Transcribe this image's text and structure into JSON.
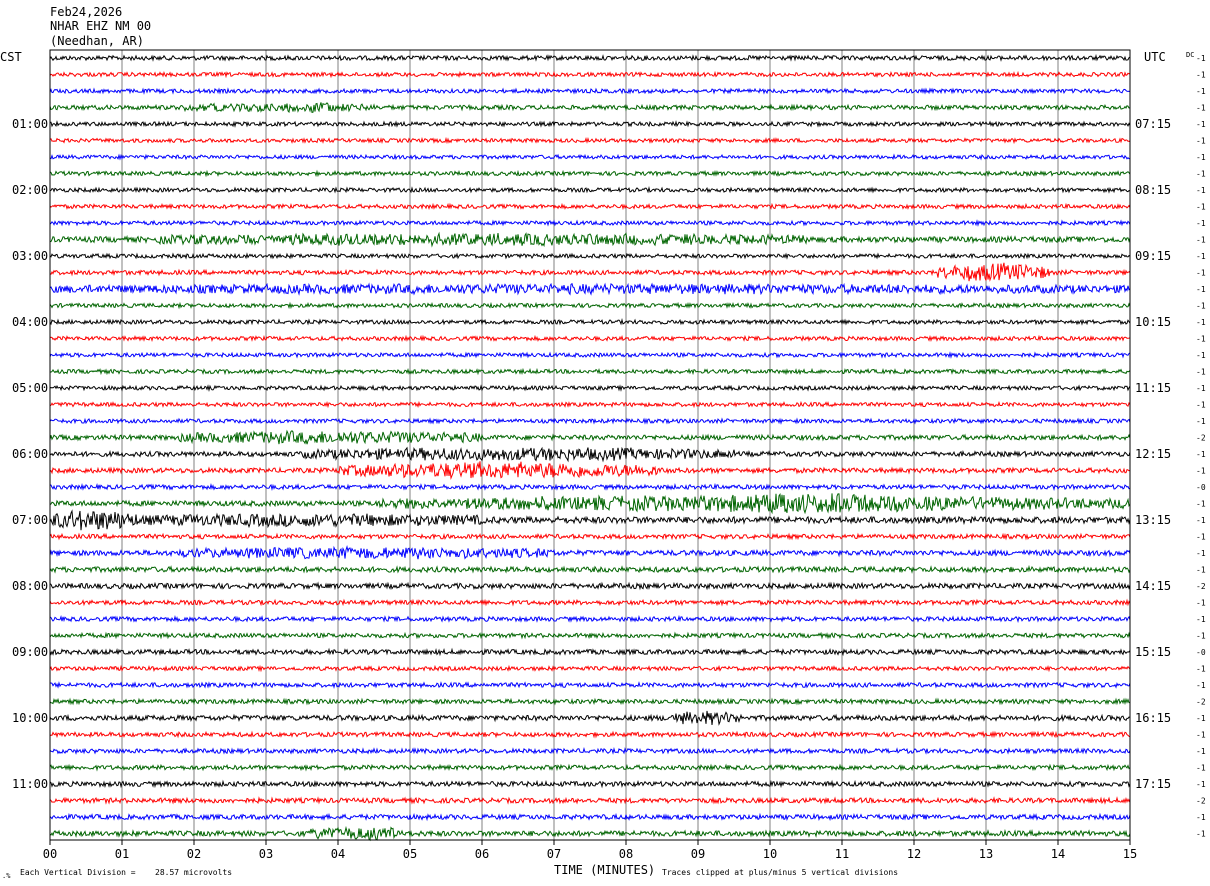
{
  "header": {
    "date": "Feb24,2026",
    "station": "NHAR EHZ NM 00",
    "location": "(Needhan, AR)"
  },
  "left_timezone": "CST",
  "right_timezone": "UTC",
  "dc_label": "DC",
  "footer": {
    "vertical_division": "Each Vertical Division =",
    "vertical_value": "28.57 microvolts",
    "time_axis_label": "TIME (MINUTES)",
    "clip_note": "Traces clipped at plus/minus 5 vertical divisions"
  },
  "colors": {
    "trace_cycle": [
      "#000000",
      "#ff0000",
      "#0000ff",
      "#006400"
    ],
    "grid": "#808080",
    "text": "#000000"
  },
  "chart_data": {
    "type": "line",
    "title": "NHAR EHZ NM 00",
    "xlabel": "TIME (MINUTES)",
    "ylabel": "",
    "xlim": [
      0,
      15
    ],
    "x_ticks": [
      "00",
      "01",
      "02",
      "03",
      "04",
      "05",
      "06",
      "07",
      "08",
      "09",
      "10",
      "11",
      "12",
      "13",
      "14",
      "15"
    ],
    "row_count": 48,
    "left_hour_labels": [
      "01:00",
      "02:00",
      "03:00",
      "04:00",
      "05:00",
      "06:00",
      "07:00",
      "08:00",
      "09:00",
      "10:00",
      "11:00"
    ],
    "right_hour_labels": [
      "07:15",
      "08:15",
      "09:15",
      "10:15",
      "11:15",
      "12:15",
      "13:15",
      "14:15",
      "15:15",
      "16:15",
      "17:15"
    ],
    "dc_offsets": [
      "-1",
      "-1",
      "-1",
      "-1",
      "-1",
      "-1",
      "-1",
      "-1",
      "-1",
      "-1",
      "-1",
      "-1",
      "-1",
      "-1",
      "-1",
      "-1",
      "-1",
      "-1",
      "-1",
      "-1",
      "-1",
      "-1",
      "-1",
      "-2",
      "-1",
      "-1",
      "-0",
      "-1",
      "-1",
      "-1",
      "-1",
      "-1",
      "-2",
      "-1",
      "-1",
      "-1",
      "-0",
      "-1",
      "-1",
      "-2",
      "-1",
      "-1",
      "-1",
      "-1",
      "-1",
      "-2",
      "-1",
      "-1"
    ],
    "noise_amplitude": [
      2.2,
      2.0,
      2.0,
      2.2,
      2.0,
      1.9,
      1.9,
      2.0,
      2.0,
      2.0,
      2.0,
      2.8,
      2.0,
      2.2,
      2.6,
      2.0,
      2.0,
      2.0,
      2.0,
      2.0,
      2.0,
      2.0,
      2.0,
      2.4,
      2.4,
      2.4,
      2.2,
      2.6,
      3.2,
      2.2,
      2.6,
      2.6,
      2.6,
      2.2,
      2.2,
      2.2,
      2.4,
      2.0,
      2.2,
      2.2,
      2.6,
      2.2,
      2.2,
      2.2,
      2.4,
      2.4,
      2.4,
      2.6
    ],
    "events": [
      {
        "row": 3,
        "start_min": 1.8,
        "end_min": 4.5,
        "amplitude": 2.5
      },
      {
        "row": 3,
        "start_min": 3.5,
        "end_min": 3.9,
        "amplitude": 4
      },
      {
        "row": 11,
        "start_min": 1.5,
        "end_min": 10.5,
        "amplitude": 4
      },
      {
        "row": 13,
        "start_min": 12.3,
        "end_min": 13.9,
        "amplitude": 8
      },
      {
        "row": 14,
        "start_min": 0,
        "end_min": 15,
        "amplitude": 3
      },
      {
        "row": 23,
        "start_min": 1.8,
        "end_min": 6,
        "amplitude": 5
      },
      {
        "row": 24,
        "start_min": 3.5,
        "end_min": 9.5,
        "amplitude": 5
      },
      {
        "row": 25,
        "start_min": 4,
        "end_min": 8.5,
        "amplitude": 7
      },
      {
        "row": 27,
        "start_min": 4.5,
        "end_min": 15,
        "amplitude": 6
      },
      {
        "row": 27,
        "start_min": 8.5,
        "end_min": 12.5,
        "amplitude": 9
      },
      {
        "row": 28,
        "start_min": 0,
        "end_min": 1.2,
        "amplitude": 9
      },
      {
        "row": 28,
        "start_min": 1.2,
        "end_min": 6,
        "amplitude": 4
      },
      {
        "row": 30,
        "start_min": 1.8,
        "end_min": 7,
        "amplitude": 4
      },
      {
        "row": 40,
        "start_min": 8.6,
        "end_min": 9.6,
        "amplitude": 5
      },
      {
        "row": 47,
        "start_min": 3.6,
        "end_min": 5,
        "amplitude": 5
      }
    ]
  }
}
